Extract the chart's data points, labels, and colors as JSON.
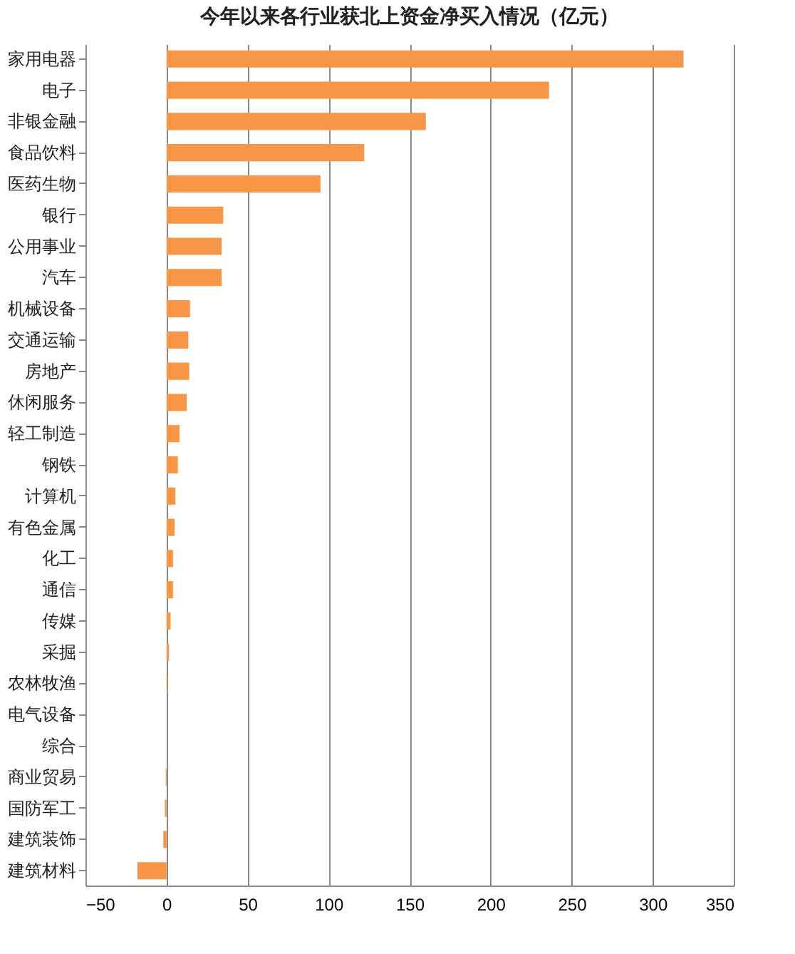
{
  "chart_data": {
    "type": "bar",
    "orientation": "horizontal",
    "title": "今年以来各行业获北上资金净买入情况（亿元）",
    "categories": [
      "家用电器",
      "电子",
      "非银金融",
      "食品饮料",
      "医药生物",
      "银行",
      "公用事业",
      "汽车",
      "机械设备",
      "交通运输",
      "房地产",
      "休闲服务",
      "轻工制造",
      "钢铁",
      "计算机",
      "有色金属",
      "化工",
      "通信",
      "传媒",
      "采掘",
      "农林牧渔",
      "电气设备",
      "综合",
      "商业贸易",
      "国防军工",
      "建筑装饰",
      "建筑材料"
    ],
    "values": [
      319,
      236,
      160,
      122,
      95,
      35,
      34,
      34,
      14.5,
      13.5,
      14,
      12.5,
      8,
      7,
      5.5,
      5,
      4,
      4,
      2.5,
      1.5,
      0.5,
      0,
      0,
      -0.5,
      -1,
      -2,
      -18
    ],
    "color": "#f79646",
    "xlim": [
      -50,
      350
    ],
    "xticks": [
      -50,
      0,
      50,
      100,
      150,
      200,
      250,
      300,
      350
    ],
    "grid": "x"
  }
}
